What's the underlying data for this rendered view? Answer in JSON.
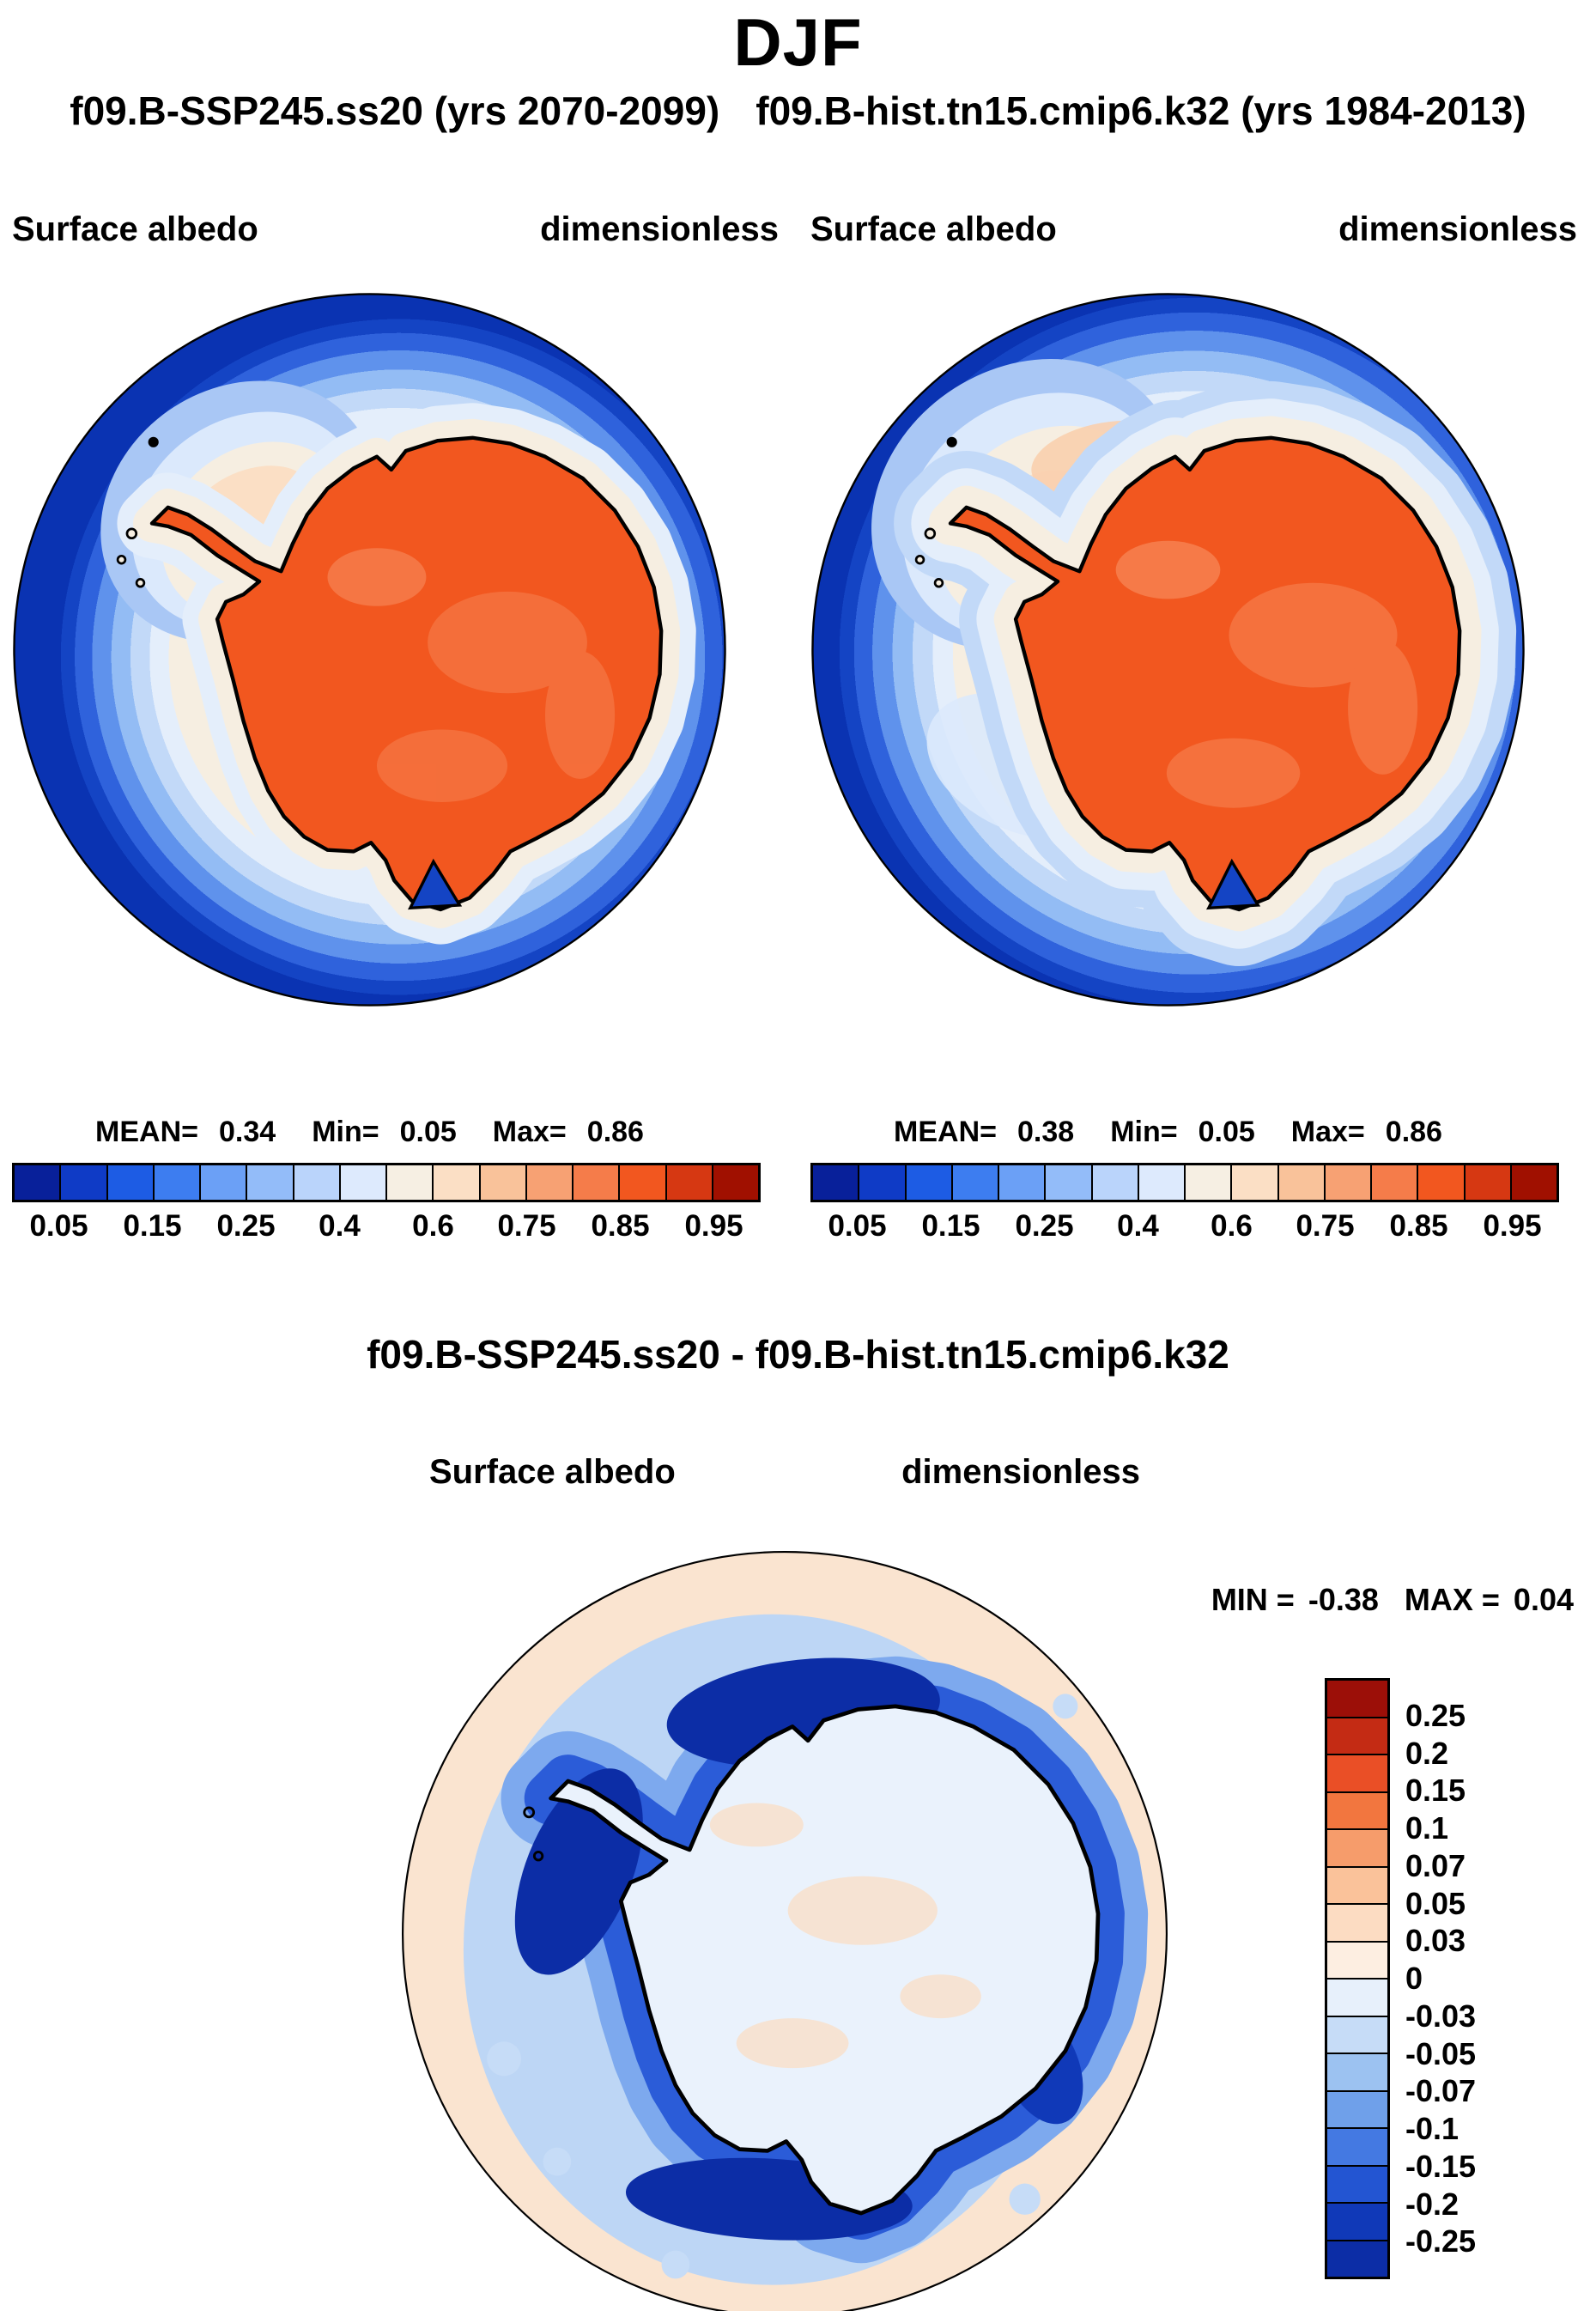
{
  "header": {
    "title": "DJF",
    "subtitle_left": "f09.B-SSP245.ss20 (yrs 2070-2099)",
    "subtitle_right": "f09.B-hist.tn15.cmip6.k32 (yrs 1984-2013)"
  },
  "panels": [
    {
      "field_label": "Surface albedo",
      "units_label": "dimensionless",
      "stats": {
        "mean_label": "MEAN=",
        "mean_value": "0.34",
        "min_label": "Min=",
        "min_value": "0.05",
        "max_label": "Max=",
        "max_value": "0.86"
      }
    },
    {
      "field_label": "Surface albedo",
      "units_label": "dimensionless",
      "stats": {
        "mean_label": "MEAN=",
        "mean_value": "0.38",
        "min_label": "Min=",
        "min_value": "0.05",
        "max_label": "Max=",
        "max_value": "0.86"
      }
    }
  ],
  "colorbar": {
    "tick_labels": [
      "0.05",
      "0.15",
      "0.25",
      "0.4",
      "0.6",
      "0.75",
      "0.85",
      "0.95"
    ],
    "colors": [
      "#08209a",
      "#0f3bc6",
      "#1d5ce4",
      "#3d7df0",
      "#6ba0f6",
      "#93bcf9",
      "#bad4fb",
      "#ddeafd",
      "#f6efe3",
      "#fbdfc5",
      "#f9c29a",
      "#f7a173",
      "#f57c4a",
      "#f2571f",
      "#d63812",
      "#a01000"
    ]
  },
  "diff": {
    "title": "f09.B-SSP245.ss20 - f09.B-hist.tn15.cmip6.k32",
    "field_label": "Surface albedo",
    "units_label": "dimensionless",
    "min_label": "MIN =",
    "min_value": "-0.38",
    "max_label": "MAX =",
    "max_value": "0.04",
    "colorbar": {
      "tick_labels": [
        "0.25",
        "0.2",
        "0.15",
        "0.1",
        "0.07",
        "0.05",
        "0.03",
        "0",
        "-0.03",
        "-0.05",
        "-0.07",
        "-0.1",
        "-0.15",
        "-0.2",
        "-0.25"
      ],
      "colors": [
        "#9c0f08",
        "#c42b14",
        "#ea4f26",
        "#f2763f",
        "#f69c6b",
        "#fac29a",
        "#fcdcc2",
        "#fdeee1",
        "#e7f0fb",
        "#c6dcf7",
        "#9cc2f1",
        "#6fa0ea",
        "#4479e2",
        "#2355d2",
        "#1039b8",
        "#0c2da6"
      ]
    }
  },
  "chart_data": [
    {
      "type": "heatmap",
      "projection": "south_polar_stereographic",
      "season": "DJF",
      "title": "f09.B-SSP245.ss20 (yrs 2070-2099)",
      "variable": "Surface albedo",
      "units": "dimensionless",
      "mean": 0.34,
      "min": 0.05,
      "max": 0.86,
      "contour_levels": [
        0.05,
        0.1,
        0.15,
        0.2,
        0.25,
        0.3,
        0.4,
        0.5,
        0.6,
        0.7,
        0.75,
        0.8,
        0.85,
        0.9,
        0.95
      ],
      "labeled_levels": [
        0.05,
        0.15,
        0.25,
        0.4,
        0.6,
        0.75,
        0.85,
        0.95
      ],
      "legend_position": "below",
      "palette": "blue(low)-to-red(high), 16 discrete classes",
      "field_reading": {
        "open_ocean": "0.05-0.10 (dark blue, outer ring)",
        "sea_ice_fringe": "0.15-0.60 (blue-to-cream bands, widest northwest of the Antarctic Peninsula)",
        "continent_interior": "0.75-0.86 (orange/red-orange)"
      }
    },
    {
      "type": "heatmap",
      "projection": "south_polar_stereographic",
      "season": "DJF",
      "title": "f09.B-hist.tn15.cmip6.k32 (yrs 1984-2013)",
      "variable": "Surface albedo",
      "units": "dimensionless",
      "mean": 0.38,
      "min": 0.05,
      "max": 0.86,
      "contour_levels": [
        0.05,
        0.1,
        0.15,
        0.2,
        0.25,
        0.3,
        0.4,
        0.5,
        0.6,
        0.7,
        0.75,
        0.8,
        0.85,
        0.9,
        0.95
      ],
      "labeled_levels": [
        0.05,
        0.15,
        0.25,
        0.4,
        0.6,
        0.75,
        0.85,
        0.95
      ],
      "legend_position": "below",
      "palette": "blue(low)-to-red(high), 16 discrete classes",
      "field_reading": {
        "open_ocean": "0.05-0.10 (dark blue, outer ring)",
        "sea_ice_fringe": "0.2-0.6 (broader pale/salmon sea-ice zone west and northwest of the peninsula than in SSP245)",
        "continent_interior": "0.75-0.86 (orange/red-orange)"
      }
    },
    {
      "type": "heatmap",
      "projection": "south_polar_stereographic",
      "season": "DJF",
      "title": "f09.B-SSP245.ss20 - f09.B-hist.tn15.cmip6.k32",
      "variable": "Surface albedo",
      "units": "dimensionless",
      "min": -0.38,
      "max": 0.04,
      "contour_levels": [
        -0.25,
        -0.2,
        -0.15,
        -0.1,
        -0.07,
        -0.05,
        -0.03,
        0,
        0.03,
        0.05,
        0.07,
        0.1,
        0.15,
        0.2,
        0.25
      ],
      "legend_position": "right",
      "palette": "red(positive)-to-blue(negative), 16 discrete classes",
      "field_reading": {
        "far_field_ocean": "0 to +0.03 (pale peach)",
        "coastal_sea_ice_zone": "-0.05 to below -0.25 (blue ring hugging the coast; darkest north of the continent, west of the peninsula and along the bottom coast)",
        "continent_interior": "-0.03 to 0 (very pale blue with faint positive speckles)"
      }
    }
  ]
}
